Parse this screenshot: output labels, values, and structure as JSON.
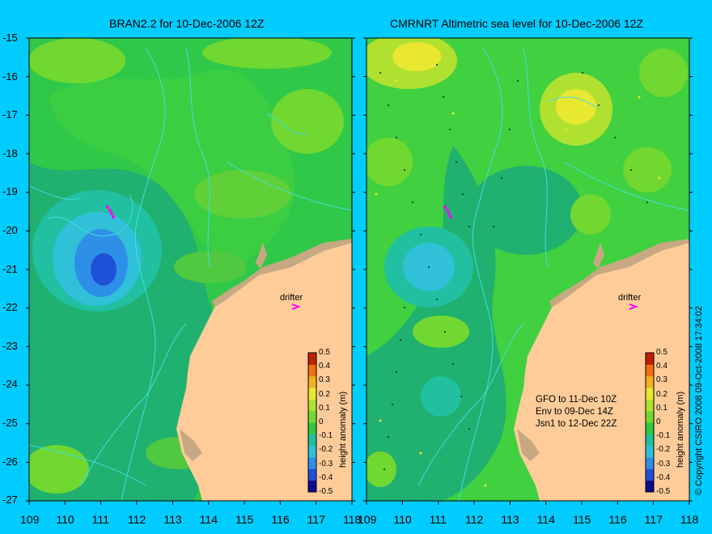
{
  "panels": [
    {
      "title": "BRAN2.2 for 10-Dec-2006 12Z"
    },
    {
      "title": "CMRNRT Altimetric sea level  for 10-Dec-2006 12Z"
    }
  ],
  "axes": {
    "lat_ticks": [
      "-15",
      "-16",
      "-17",
      "-18",
      "-19",
      "-20",
      "-21",
      "-22",
      "-23",
      "-24",
      "-25",
      "-26",
      "-27"
    ],
    "lon_ticks": [
      "109",
      "110",
      "111",
      "112",
      "113",
      "114",
      "115",
      "116",
      "117",
      "118"
    ],
    "lon_ticks_right_panel": [
      "109",
      "110",
      "111",
      "112",
      "113",
      "114",
      "115",
      "116",
      "117",
      "118"
    ]
  },
  "drifter_label": "drifter",
  "colorbar": {
    "label": "height anomaly (m)",
    "ticks": [
      "0.5",
      "0.4",
      "0.3",
      "0.2",
      "0.1",
      "0",
      "-0.1",
      "-0.2",
      "-0.3",
      "-0.4",
      "-0.5"
    ],
    "colors": [
      "#0a0a8c",
      "#1e50d8",
      "#2e8fe8",
      "#30c0d8",
      "#20c0a0",
      "#30c840",
      "#70d830",
      "#b0e030",
      "#e8e830",
      "#f0b020",
      "#f07010",
      "#c02000"
    ]
  },
  "satellite_info": {
    "line1": "GFO to 11-Dec 10Z",
    "line2": "Env to 09-Dec 14Z",
    "line3": "Jsn1 to 12-Dec 22Z"
  },
  "copyright": "© Copyright CSIRO 2008    09-Oct-2008 17:34:02",
  "colors": {
    "background": "#00ccff",
    "land": "#ffcc99",
    "coast_shelf": "#c8a882",
    "bathymetry": "#40e0e0",
    "drifter_track": "#ff00ff"
  }
}
